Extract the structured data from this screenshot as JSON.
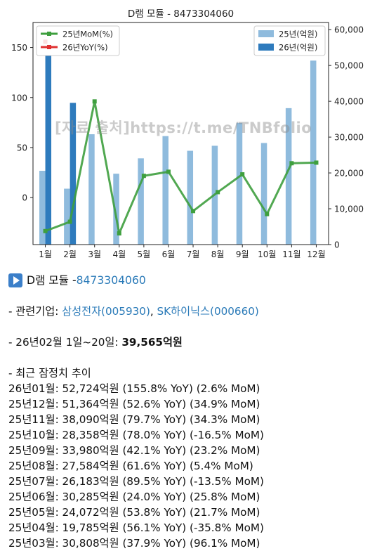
{
  "chart_data": {
    "type": "bar+line",
    "title": "D램 모듈 - 8473304060",
    "categories": [
      "1월",
      "2월",
      "3월",
      "4월",
      "5월",
      "6월",
      "7월",
      "8월",
      "9월",
      "10월",
      "11월",
      "12월"
    ],
    "bar_series": [
      {
        "name": "25년(억원)",
        "color": "#8fbbdd",
        "values": [
          20600,
          15600,
          30808,
          19785,
          24072,
          30285,
          26183,
          27584,
          33980,
          28358,
          38090,
          51364
        ]
      },
      {
        "name": "26년(억원)",
        "color": "#2e7bbd",
        "values": [
          52724,
          39565,
          null,
          null,
          null,
          null,
          null,
          null,
          null,
          null,
          null,
          null
        ]
      }
    ],
    "line_series": [
      {
        "name": "25년MoM(%)",
        "color": "#3e9f3e",
        "values": [
          -33.5,
          -24.2,
          96.1,
          -35.8,
          21.7,
          25.8,
          -13.5,
          5.4,
          23.2,
          -16.5,
          34.3,
          34.9
        ]
      },
      {
        "name": "26년YoY(%)",
        "color": "#e03030",
        "values": [
          155.8,
          null,
          null,
          null,
          null,
          null,
          null,
          null,
          null,
          null,
          null,
          null
        ]
      }
    ],
    "y_left": {
      "ticks": [
        0,
        50,
        100,
        150
      ],
      "range": [
        -47,
        175
      ]
    },
    "y_right": {
      "ticks": [
        0,
        10000,
        20000,
        30000,
        40000,
        50000,
        60000
      ],
      "tick_labels": [
        "0",
        "10,000",
        "20,000",
        "30,000",
        "40,000",
        "50,000",
        "60,000"
      ],
      "range": [
        0,
        62000
      ]
    },
    "legend_left": "top-left",
    "legend_right": "top-right",
    "grid": false
  },
  "watermark": "[자료 출처]https://t.me/TNBfolio",
  "text": {
    "title_prefix": "D램 모듈 - ",
    "title_code": "8473304060",
    "related_label": " - 관련기업: ",
    "company1": "삼성전자(005930)",
    "separator": ", ",
    "company2": "SK하이닉스(000660)",
    "period_label": " - 26년02월 1일~20일: ",
    "period_value": "39,565억원",
    "trend_label": " - 최근 잠정치 추이",
    "trend_rows": [
      "26년01월: 52,724억원 (155.8% YoY) (2.6% MoM)",
      "25년12월: 51,364억원 (52.6% YoY) (34.9% MoM)",
      "25년11월: 38,090억원 (79.7% YoY) (34.3% MoM)",
      "25년10월: 28,358억원 (78.0% YoY) (-16.5% MoM)",
      "25년09월: 33,980억원 (42.1% YoY) (23.2% MoM)",
      "25년08월: 27,584억원 (61.6% YoY) (5.4% MoM)",
      "25년07월: 26,183억원 (89.5% YoY) (-13.5% MoM)",
      "25년06월: 30,285억원 (24.0% YoY) (25.8% MoM)",
      "25년05월: 24,072억원 (53.8% YoY) (21.7% MoM)",
      "25년04월: 19,785억원 (56.1% YoY) (-35.8% MoM)",
      "25년03월: 30,808억원 (37.9% YoY) (96.1% MoM)"
    ]
  }
}
